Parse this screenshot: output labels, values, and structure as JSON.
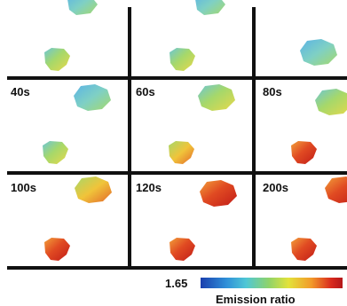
{
  "panels": [
    {
      "label": ""
    },
    {
      "label": ""
    },
    {
      "label": ""
    },
    {
      "label": "40s"
    },
    {
      "label": "60s"
    },
    {
      "label": "80s"
    },
    {
      "label": "100s"
    },
    {
      "label": "120s"
    },
    {
      "label": "200s"
    }
  ],
  "colorbar": {
    "min_label": "1.65",
    "title": "Emission ratio",
    "colors": [
      "#1a3fae",
      "#2f8fd8",
      "#4fc7d6",
      "#8fd36a",
      "#e3e23a",
      "#f29a2a",
      "#d92a1e"
    ]
  },
  "grid_color": "#111111"
}
